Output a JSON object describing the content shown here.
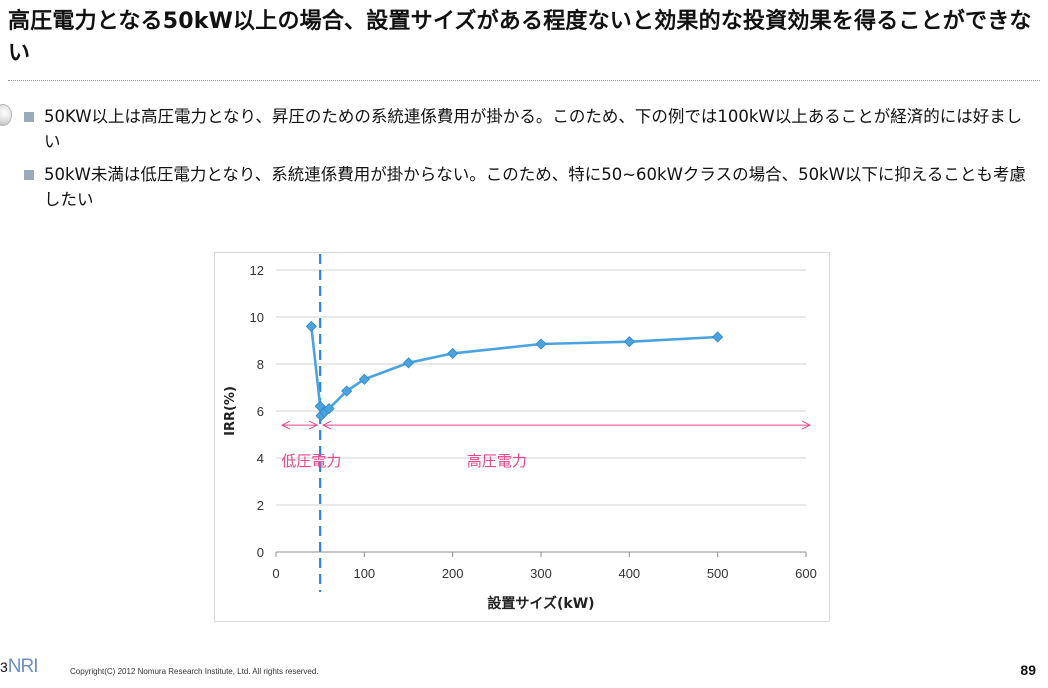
{
  "title": "高圧電力となる50kW以上の場合、設置サイズがある程度ないと効果的な投資効果を得ることができない",
  "bullets": [
    "50KW以上は高圧電力となり、昇圧のための系統連係費用が掛かる。このため、下の例では100kW以上あることが経済的には好ましい",
    "50kW未満は低圧電力となり、系統連係費用が掛からない。このため、特に50~60kWクラスの場合、50kW以下に抑えることも考慮したい"
  ],
  "colors": {
    "series": "#4aa3df",
    "annotation": "#e8458b",
    "divider_line": "#2a85d6",
    "grid": "#d0d0d0",
    "bullet_square": "#9aaabb"
  },
  "chart_data": {
    "type": "line",
    "x": [
      40,
      50,
      51,
      55,
      60,
      80,
      100,
      150,
      200,
      300,
      400,
      500
    ],
    "series": [
      {
        "values": [
          9.6,
          6.2,
          5.8,
          5.95,
          6.1,
          6.85,
          7.35,
          8.05,
          8.45,
          8.85,
          8.95,
          9.15
        ]
      }
    ],
    "xlabel": "設置サイズ(kW)",
    "ylabel": "IRR(%)",
    "xlim": [
      0,
      600
    ],
    "ylim": [
      0,
      12
    ],
    "xticks": [
      0,
      100,
      200,
      300,
      400,
      500,
      600
    ],
    "yticks": [
      0,
      2,
      4,
      6,
      8,
      10,
      12
    ],
    "grid": "horizontal",
    "marker": "diamond",
    "threshold_x": 50,
    "arrow_y": 5.4,
    "annotations": [
      {
        "text": "低圧電力",
        "x": 40,
        "y": 4
      },
      {
        "text": "高圧電力",
        "x": 250,
        "y": 4
      }
    ]
  },
  "footer": {
    "logo_lead": "3",
    "logo": "NRI",
    "copyright": "Copyright(C) 2012 Nomura Research Institute, Ltd. All rights reserved.",
    "page": "89"
  }
}
